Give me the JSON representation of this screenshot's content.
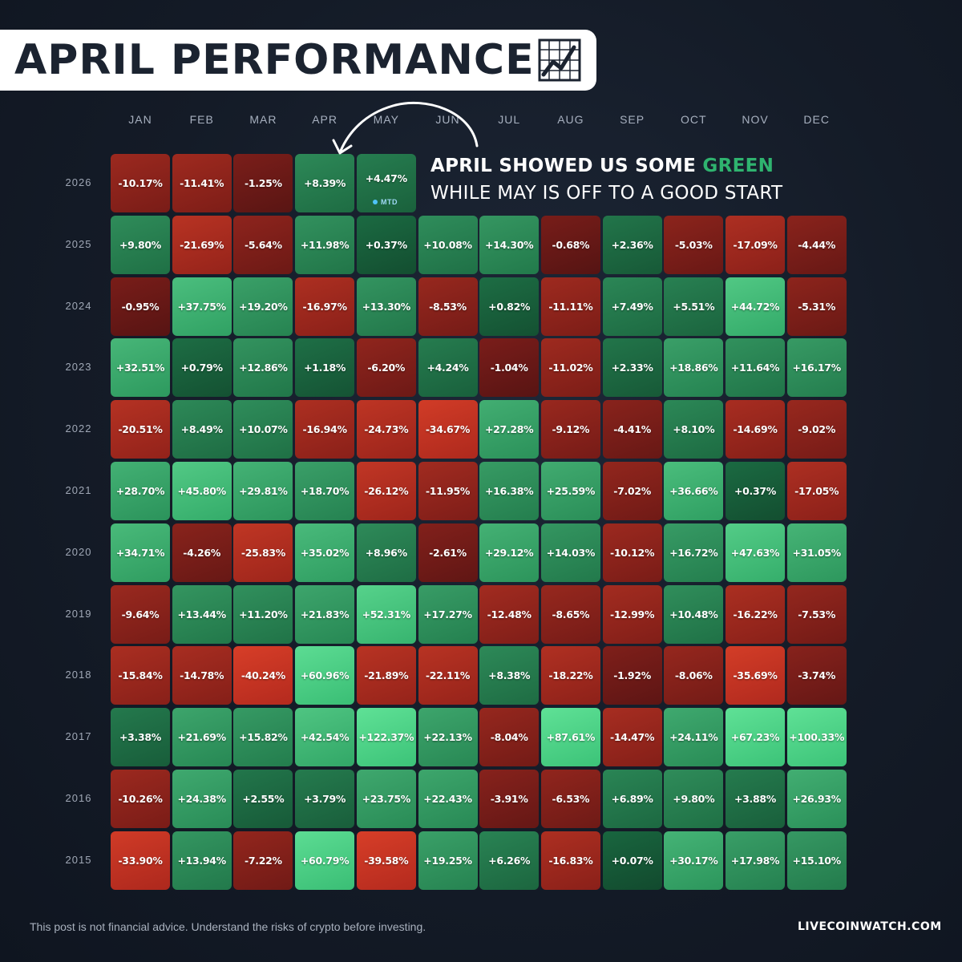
{
  "header": {
    "title": "APRIL PERFORMANCE",
    "icon": "chart-trend-icon"
  },
  "annotation": {
    "line1_prefix": "APRIL SHOWED US SOME ",
    "line1_highlight": "GREEN",
    "line2": "WHILE MAY IS OFF TO A GOOD START",
    "highlight_color": "#2fb36f"
  },
  "badge": {
    "mtd_label": "MTD",
    "dot_color": "#4fc3f7"
  },
  "footer": {
    "disclaimer": "This post is not financial advice. Understand the risks of crypto before investing.",
    "brand": "LIVECOINWATCH.COM"
  },
  "chart_data": {
    "type": "heatmap",
    "columns": [
      "JAN",
      "FEB",
      "MAR",
      "APR",
      "MAY",
      "JUN",
      "JUL",
      "AUG",
      "SEP",
      "OCT",
      "NOV",
      "DEC"
    ],
    "rows": [
      {
        "year": "2026",
        "values": [
          -10.17,
          -11.41,
          -1.25,
          8.39,
          4.47,
          null,
          null,
          null,
          null,
          null,
          null,
          null
        ]
      },
      {
        "year": "2025",
        "values": [
          9.8,
          -21.69,
          -5.64,
          11.98,
          0.37,
          10.08,
          14.3,
          -0.68,
          2.36,
          -5.03,
          -17.09,
          -4.44
        ]
      },
      {
        "year": "2024",
        "values": [
          -0.95,
          37.75,
          19.2,
          -16.97,
          13.3,
          -8.53,
          0.82,
          -11.11,
          7.49,
          5.51,
          44.72,
          -5.31
        ]
      },
      {
        "year": "2023",
        "values": [
          32.51,
          0.79,
          12.86,
          1.18,
          -6.2,
          4.24,
          -1.04,
          -11.02,
          2.33,
          18.86,
          11.64,
          16.17
        ]
      },
      {
        "year": "2022",
        "values": [
          -20.51,
          8.49,
          10.07,
          -16.94,
          -24.73,
          -34.67,
          27.28,
          -9.12,
          -4.41,
          8.1,
          -14.69,
          -9.02
        ]
      },
      {
        "year": "2021",
        "values": [
          28.7,
          45.8,
          29.81,
          18.7,
          -26.12,
          -11.95,
          16.38,
          25.59,
          -7.02,
          36.66,
          0.37,
          -17.05
        ]
      },
      {
        "year": "2020",
        "values": [
          34.71,
          -4.26,
          -25.83,
          35.02,
          8.96,
          -2.61,
          29.12,
          14.03,
          -10.12,
          16.72,
          47.63,
          31.05
        ]
      },
      {
        "year": "2019",
        "values": [
          -9.64,
          13.44,
          11.2,
          21.83,
          52.31,
          17.27,
          -12.48,
          -8.65,
          -12.99,
          10.48,
          -16.22,
          -7.53
        ]
      },
      {
        "year": "2018",
        "values": [
          -15.84,
          -14.78,
          -40.24,
          60.96,
          -21.89,
          -22.11,
          8.38,
          -18.22,
          -1.92,
          -8.06,
          -35.69,
          -3.74
        ]
      },
      {
        "year": "2017",
        "values": [
          3.38,
          21.69,
          15.82,
          42.54,
          122.37,
          22.13,
          -8.04,
          87.61,
          -14.47,
          24.11,
          67.23,
          100.33
        ]
      },
      {
        "year": "2016",
        "values": [
          -10.26,
          24.38,
          2.55,
          3.79,
          23.75,
          22.43,
          -3.91,
          -6.53,
          6.89,
          9.8,
          3.88,
          26.93
        ]
      },
      {
        "year": "2015",
        "values": [
          -33.9,
          13.94,
          -7.22,
          60.79,
          -39.58,
          19.25,
          6.26,
          -16.83,
          0.07,
          30.17,
          17.98,
          15.1
        ]
      }
    ],
    "positive_color": "#2fb36f",
    "negative_color": "#c0392b"
  }
}
